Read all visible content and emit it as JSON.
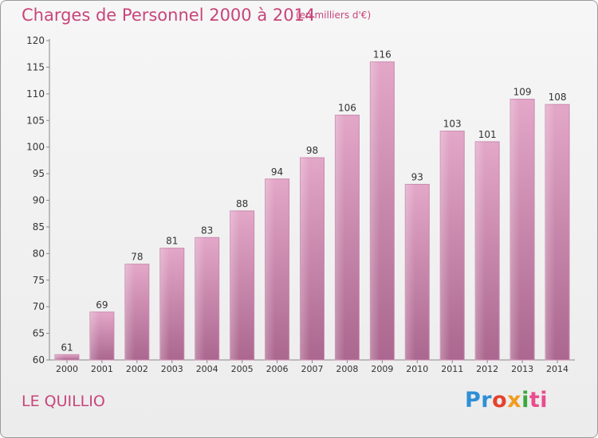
{
  "title": "Charges de Personnel 2000 à 2014",
  "subtitle": "(en milliers d'€)",
  "commune": "LE QUILLIO",
  "logo": {
    "text": "Proxiti",
    "parts": [
      "Pr",
      "o",
      "x",
      "i",
      "ti"
    ]
  },
  "colors": {
    "bar": "#d992ba",
    "accent": "#c8457a"
  },
  "chart_data": {
    "type": "bar",
    "title": "Charges de Personnel 2000 à 2014",
    "subtitle": "(en milliers d'€)",
    "categories": [
      "2000",
      "2001",
      "2002",
      "2003",
      "2004",
      "2005",
      "2006",
      "2007",
      "2008",
      "2009",
      "2010",
      "2011",
      "2012",
      "2013",
      "2014"
    ],
    "values": [
      61,
      69,
      78,
      81,
      83,
      88,
      94,
      98,
      106,
      116,
      93,
      103,
      101,
      109,
      108
    ],
    "ylim": [
      60,
      120
    ],
    "yticks": [
      60,
      65,
      70,
      75,
      80,
      85,
      90,
      95,
      100,
      105,
      110,
      115,
      120
    ],
    "xlabel": "",
    "ylabel": "",
    "grid": false
  }
}
